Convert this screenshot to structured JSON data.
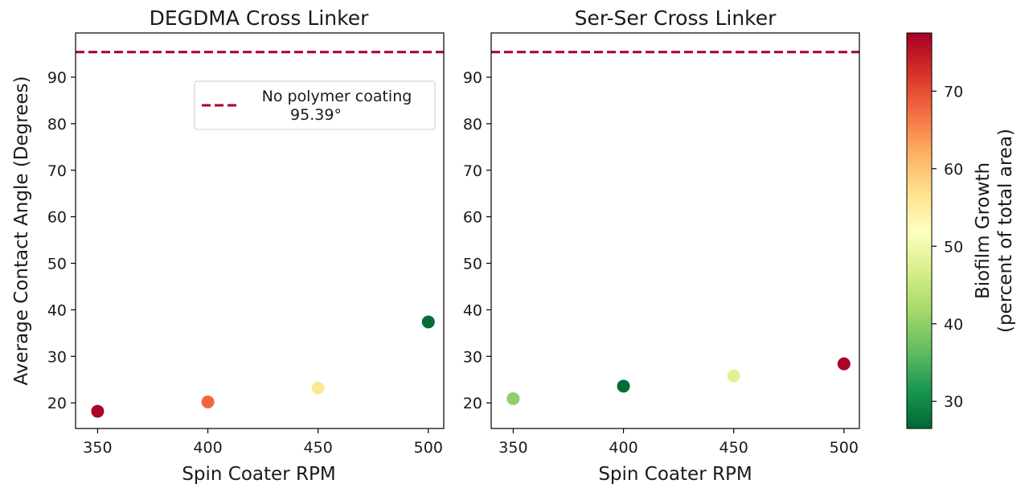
{
  "chart_data": {
    "type": "scatter",
    "shared_ylabel": "Average Contact Angle (Degrees)",
    "panels": [
      {
        "title": "DEGDMA Cross Linker",
        "xlabel": "Spin Coater RPM",
        "x_ticks": [
          "350",
          "400",
          "450",
          "500"
        ],
        "y_ticks": [
          "20",
          "30",
          "40",
          "50",
          "60",
          "70",
          "80",
          "90"
        ],
        "xlim": [
          340,
          507
        ],
        "ylim": [
          14.5,
          99.5
        ],
        "reference_line": {
          "y": 95.39,
          "color": "#a50026",
          "style": "dashed"
        },
        "legend": {
          "position": "upper-right",
          "label": "No polymer coating\n95.39°"
        },
        "points": [
          {
            "x": 350,
            "y": 18.2,
            "growth": 77
          },
          {
            "x": 400,
            "y": 20.2,
            "growth": 68
          },
          {
            "x": 450,
            "y": 23.2,
            "growth": 56
          },
          {
            "x": 500,
            "y": 37.4,
            "growth": 27
          }
        ]
      },
      {
        "title": "Ser-Ser Cross Linker",
        "xlabel": "Spin Coater RPM",
        "x_ticks": [
          "350",
          "400",
          "450",
          "500"
        ],
        "y_ticks": [
          "20",
          "30",
          "40",
          "50",
          "60",
          "70",
          "80",
          "90"
        ],
        "xlim": [
          340,
          507
        ],
        "ylim": [
          14.5,
          99.5
        ],
        "reference_line": {
          "y": 95.39,
          "color": "#a50026",
          "style": "dashed"
        },
        "points": [
          {
            "x": 350,
            "y": 20.9,
            "growth": 40
          },
          {
            "x": 400,
            "y": 23.6,
            "growth": 27
          },
          {
            "x": 450,
            "y": 25.8,
            "growth": 48
          },
          {
            "x": 500,
            "y": 28.4,
            "growth": 77
          }
        ]
      }
    ],
    "colorbar": {
      "label_line1": "Biofilm Growth",
      "label_line2": "(percent of total area)",
      "ticks": [
        "30",
        "40",
        "50",
        "60",
        "70"
      ],
      "range": [
        26.5,
        77.5
      ],
      "colormap": "RdYlGn_r",
      "stops": [
        "#006837",
        "#1a9850",
        "#66bd63",
        "#a6d96a",
        "#d9ef8b",
        "#ffffbf",
        "#fee08b",
        "#fdae61",
        "#f46d43",
        "#d73027",
        "#a50026"
      ]
    }
  }
}
